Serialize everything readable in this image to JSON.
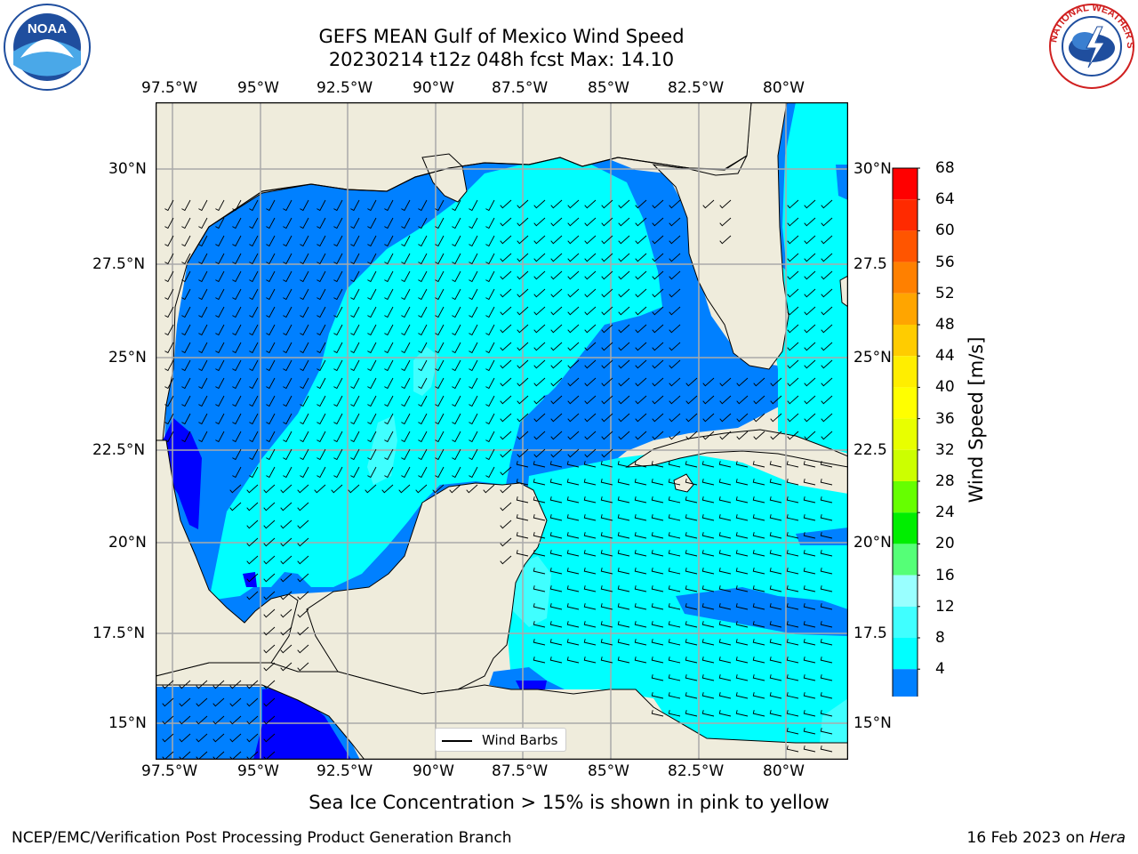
{
  "title": {
    "line1": "GEFS MEAN Gulf of Mexico Wind Speed",
    "line2": "20230214 t12z 048h fcst   Max: 14.10"
  },
  "logos": {
    "left": "NOAA",
    "right": "NATIONAL WEATHER SERVICE"
  },
  "map": {
    "lon_labels": [
      "97.5°W",
      "95°W",
      "92.5°W",
      "90°W",
      "87.5°W",
      "85°W",
      "82.5°W",
      "80°W"
    ],
    "lat_labels_left": [
      "30°N",
      "27.5°N",
      "25°N",
      "22.5°N",
      "20°N",
      "17.5°N",
      "15°N"
    ],
    "lat_labels_right": [
      "30°N",
      "27.5",
      "25°N",
      "22.5",
      "20°N",
      "17.5",
      "15°N"
    ],
    "legend_label": "Wind Barbs",
    "colors": {
      "land": "#efecdc",
      "speed_0_4": "#0000ff",
      "speed_4_8": "#0080ff",
      "speed_8_12": "#00ffff",
      "speed_12_16": "#40ffff",
      "speed_16_20": "#99ffff"
    }
  },
  "colorbar": {
    "title": "Wind Speed [m/s]",
    "labels": [
      "68",
      "64",
      "60",
      "56",
      "52",
      "48",
      "44",
      "40",
      "36",
      "32",
      "28",
      "24",
      "20",
      "16",
      "12",
      "8",
      "4"
    ],
    "colors": [
      "#ff0000",
      "#ff2a00",
      "#ff5500",
      "#ff8000",
      "#ffa500",
      "#ffcc00",
      "#ffee00",
      "#ffff00",
      "#e8ff00",
      "#ccff00",
      "#66ff00",
      "#00ee00",
      "#55ff77",
      "#99ffff",
      "#40ffff",
      "#00ffff",
      "#0080ff"
    ],
    "extend_color": "#0000ff"
  },
  "note": "Sea Ice Concentration > 15% is shown in pink to yellow",
  "footer": {
    "left": "NCEP/EMC/Verification Post Processing Product Generation Branch",
    "date": "16 Feb 2023 on ",
    "host": "Hera"
  }
}
